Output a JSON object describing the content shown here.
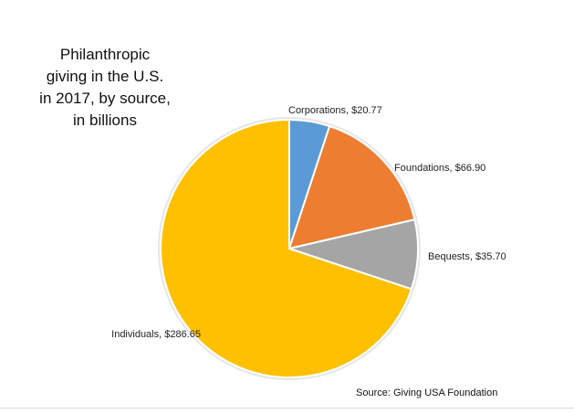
{
  "chart_data": {
    "type": "pie",
    "title_lines": [
      "Philanthropic",
      "giving in the U.S.",
      "in 2017, by source,",
      "in billions"
    ],
    "slices": [
      {
        "label": "Corporations, $20.77",
        "value": 20.77,
        "color": "#5b9bd5"
      },
      {
        "label": "Foundations, $66.90",
        "value": 66.9,
        "color": "#ed7d31"
      },
      {
        "label": "Bequests, $35.70",
        "value": 35.7,
        "color": "#a5a5a5"
      },
      {
        "label": "Individuals, $286.65",
        "value": 286.65,
        "color": "#ffc000"
      }
    ],
    "start_angle_deg": 0,
    "direction": "clockwise",
    "source": "Source: Giving USA Foundation",
    "legend": "none"
  }
}
